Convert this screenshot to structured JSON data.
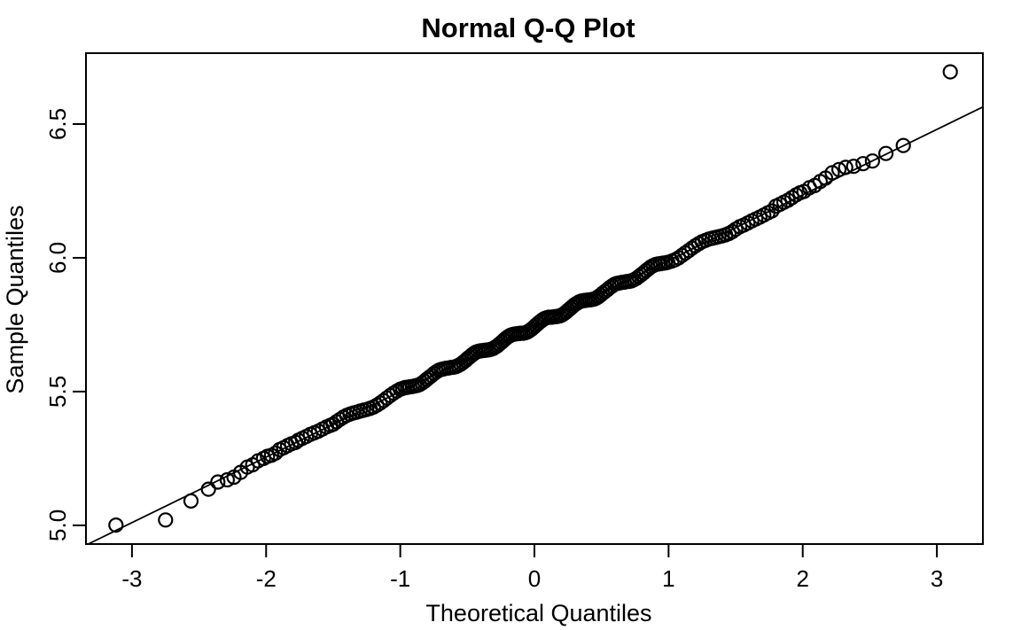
{
  "figure": {
    "background_color": "#ffffff",
    "foreground_color": "#000000"
  },
  "chart_data": {
    "type": "scatter",
    "title": "Normal Q-Q Plot",
    "xlabel": "Theoretical Quantiles",
    "ylabel": "Sample Quantiles",
    "x_ticks": [
      -3,
      -2,
      -1,
      0,
      1,
      2,
      3
    ],
    "x_tick_labels": [
      "-3",
      "-2",
      "-1",
      "0",
      "1",
      "2",
      "3"
    ],
    "y_ticks": [
      5.0,
      5.5,
      6.0,
      6.5
    ],
    "y_tick_labels": [
      "5.0",
      "5.5",
      "6.0",
      "6.5"
    ],
    "xlim": [
      -3.343,
      3.343
    ],
    "ylim": [
      4.93,
      6.765
    ],
    "grid": false,
    "legend": "none",
    "marker": "open-circle",
    "colors": {
      "points": "#000000",
      "line": "#000000",
      "text": "#000000",
      "background": "#ffffff"
    },
    "reference_line": {
      "kind": "qqline",
      "intercept": 5.745,
      "slope": 0.245
    },
    "points": [
      [
        -3.12,
        5.001
      ],
      [
        -2.75,
        5.02
      ],
      [
        -2.56,
        5.091
      ],
      [
        -2.43,
        5.135
      ],
      [
        -2.36,
        5.162
      ],
      [
        -2.29,
        5.17
      ],
      [
        -2.24,
        5.18
      ],
      [
        -2.19,
        5.198
      ],
      [
        -2.14,
        5.218
      ],
      [
        -2.1,
        5.226
      ],
      [
        -2.06,
        5.241
      ],
      [
        -2.02,
        5.25
      ],
      [
        -1.99,
        5.258
      ],
      [
        -1.96,
        5.262
      ],
      [
        -1.93,
        5.27
      ],
      [
        -1.9,
        5.283
      ],
      [
        -1.87,
        5.29
      ],
      [
        -1.84,
        5.298
      ],
      [
        -1.81,
        5.305
      ],
      [
        -1.78,
        5.31
      ],
      [
        -1.76,
        5.318
      ],
      [
        -1.73,
        5.325
      ],
      [
        -1.7,
        5.332
      ],
      [
        -1.67,
        5.34
      ],
      [
        -1.64,
        5.346
      ],
      [
        -1.61,
        5.352
      ],
      [
        -1.58,
        5.36
      ],
      [
        -1.55,
        5.368
      ],
      [
        -1.52,
        5.374
      ],
      [
        -1.5,
        5.378
      ],
      [
        -1.475,
        5.387
      ],
      [
        -1.45,
        5.396
      ],
      [
        -1.425,
        5.404
      ],
      [
        -1.4,
        5.411
      ],
      [
        -1.375,
        5.416
      ],
      [
        -1.35,
        5.42
      ],
      [
        -1.325,
        5.423
      ],
      [
        -1.3,
        5.427
      ],
      [
        -1.275,
        5.43
      ],
      [
        -1.25,
        5.433
      ],
      [
        -1.225,
        5.437
      ],
      [
        -1.2,
        5.442
      ],
      [
        -1.175,
        5.449
      ],
      [
        -1.15,
        5.457
      ],
      [
        -1.125,
        5.466
      ],
      [
        -1.1,
        5.476
      ],
      [
        -1.075,
        5.485
      ],
      [
        -1.05,
        5.494
      ],
      [
        -1.025,
        5.502
      ],
      [
        -1.0,
        5.509
      ],
      [
        -0.982,
        5.512
      ],
      [
        -0.964,
        5.515
      ],
      [
        -0.946,
        5.516
      ],
      [
        -0.928,
        5.518
      ],
      [
        -0.91,
        5.519
      ],
      [
        -0.892,
        5.521
      ],
      [
        -0.874,
        5.523
      ],
      [
        -0.856,
        5.526
      ],
      [
        -0.838,
        5.532
      ],
      [
        -0.82,
        5.538
      ],
      [
        -0.802,
        5.546
      ],
      [
        -0.784,
        5.553
      ],
      [
        -0.766,
        5.56
      ],
      [
        -0.748,
        5.568
      ],
      [
        -0.73,
        5.574
      ],
      [
        -0.712,
        5.58
      ],
      [
        -0.694,
        5.583
      ],
      [
        -0.676,
        5.585
      ],
      [
        -0.658,
        5.587
      ],
      [
        -0.64,
        5.588
      ],
      [
        -0.622,
        5.59
      ],
      [
        -0.604,
        5.591
      ],
      [
        -0.586,
        5.593
      ],
      [
        -0.568,
        5.597
      ],
      [
        -0.55,
        5.602
      ],
      [
        -0.532,
        5.609
      ],
      [
        -0.514,
        5.616
      ],
      [
        -0.5,
        5.623
      ],
      [
        -0.484,
        5.629
      ],
      [
        -0.468,
        5.636
      ],
      [
        -0.452,
        5.642
      ],
      [
        -0.436,
        5.647
      ],
      [
        -0.42,
        5.65
      ],
      [
        -0.404,
        5.652
      ],
      [
        -0.388,
        5.653
      ],
      [
        -0.372,
        5.654
      ],
      [
        -0.356,
        5.655
      ],
      [
        -0.34,
        5.656
      ],
      [
        -0.324,
        5.658
      ],
      [
        -0.308,
        5.661
      ],
      [
        -0.292,
        5.666
      ],
      [
        -0.276,
        5.671
      ],
      [
        -0.26,
        5.678
      ],
      [
        -0.244,
        5.685
      ],
      [
        -0.228,
        5.692
      ],
      [
        -0.212,
        5.699
      ],
      [
        -0.196,
        5.705
      ],
      [
        -0.18,
        5.71
      ],
      [
        -0.164,
        5.713
      ],
      [
        -0.148,
        5.715
      ],
      [
        -0.132,
        5.716
      ],
      [
        -0.116,
        5.717
      ],
      [
        -0.1,
        5.718
      ],
      [
        -0.084,
        5.718
      ],
      [
        -0.068,
        5.72
      ],
      [
        -0.052,
        5.723
      ],
      [
        -0.036,
        5.728
      ],
      [
        -0.02,
        5.734
      ],
      [
        -0.004,
        5.741
      ],
      [
        0.012,
        5.748
      ],
      [
        0.028,
        5.755
      ],
      [
        0.044,
        5.762
      ],
      [
        0.06,
        5.768
      ],
      [
        0.076,
        5.773
      ],
      [
        0.092,
        5.776
      ],
      [
        0.108,
        5.778
      ],
      [
        0.124,
        5.778
      ],
      [
        0.14,
        5.779
      ],
      [
        0.156,
        5.78
      ],
      [
        0.172,
        5.781
      ],
      [
        0.188,
        5.783
      ],
      [
        0.204,
        5.786
      ],
      [
        0.22,
        5.791
      ],
      [
        0.236,
        5.797
      ],
      [
        0.252,
        5.804
      ],
      [
        0.268,
        5.811
      ],
      [
        0.284,
        5.818
      ],
      [
        0.3,
        5.825
      ],
      [
        0.316,
        5.83
      ],
      [
        0.332,
        5.835
      ],
      [
        0.348,
        5.838
      ],
      [
        0.364,
        5.84
      ],
      [
        0.38,
        5.841
      ],
      [
        0.396,
        5.842
      ],
      [
        0.412,
        5.843
      ],
      [
        0.428,
        5.844
      ],
      [
        0.444,
        5.846
      ],
      [
        0.46,
        5.849
      ],
      [
        0.476,
        5.854
      ],
      [
        0.492,
        5.86
      ],
      [
        0.508,
        5.867
      ],
      [
        0.526,
        5.874
      ],
      [
        0.544,
        5.881
      ],
      [
        0.562,
        5.889
      ],
      [
        0.58,
        5.895
      ],
      [
        0.598,
        5.901
      ],
      [
        0.616,
        5.904
      ],
      [
        0.634,
        5.906
      ],
      [
        0.652,
        5.908
      ],
      [
        0.67,
        5.909
      ],
      [
        0.688,
        5.911
      ],
      [
        0.706,
        5.912
      ],
      [
        0.724,
        5.914
      ],
      [
        0.742,
        5.918
      ],
      [
        0.76,
        5.923
      ],
      [
        0.778,
        5.93
      ],
      [
        0.796,
        5.937
      ],
      [
        0.814,
        5.944
      ],
      [
        0.832,
        5.952
      ],
      [
        0.85,
        5.959
      ],
      [
        0.868,
        5.966
      ],
      [
        0.886,
        5.971
      ],
      [
        0.904,
        5.975
      ],
      [
        0.922,
        5.977
      ],
      [
        0.94,
        5.978
      ],
      [
        0.958,
        5.98
      ],
      [
        0.976,
        5.981
      ],
      [
        0.994,
        5.983
      ],
      [
        1.025,
        5.988
      ],
      [
        1.05,
        5.993
      ],
      [
        1.075,
        6.0
      ],
      [
        1.1,
        6.009
      ],
      [
        1.125,
        6.018
      ],
      [
        1.15,
        6.027
      ],
      [
        1.175,
        6.036
      ],
      [
        1.2,
        6.045
      ],
      [
        1.225,
        6.053
      ],
      [
        1.25,
        6.06
      ],
      [
        1.275,
        6.065
      ],
      [
        1.3,
        6.07
      ],
      [
        1.325,
        6.073
      ],
      [
        1.35,
        6.076
      ],
      [
        1.375,
        6.079
      ],
      [
        1.4,
        6.082
      ],
      [
        1.425,
        6.086
      ],
      [
        1.45,
        6.091
      ],
      [
        1.475,
        6.098
      ],
      [
        1.5,
        6.107
      ],
      [
        1.53,
        6.116
      ],
      [
        1.56,
        6.122
      ],
      [
        1.59,
        6.13
      ],
      [
        1.62,
        6.138
      ],
      [
        1.65,
        6.145
      ],
      [
        1.68,
        6.152
      ],
      [
        1.71,
        6.16
      ],
      [
        1.74,
        6.168
      ],
      [
        1.77,
        6.175
      ],
      [
        1.8,
        6.193
      ],
      [
        1.83,
        6.2
      ],
      [
        1.86,
        6.208
      ],
      [
        1.89,
        6.215
      ],
      [
        1.92,
        6.225
      ],
      [
        1.95,
        6.235
      ],
      [
        1.98,
        6.243
      ],
      [
        2.01,
        6.248
      ],
      [
        2.05,
        6.262
      ],
      [
        2.09,
        6.27
      ],
      [
        2.13,
        6.285
      ],
      [
        2.17,
        6.298
      ],
      [
        2.22,
        6.318
      ],
      [
        2.27,
        6.33
      ],
      [
        2.32,
        6.338
      ],
      [
        2.38,
        6.342
      ],
      [
        2.45,
        6.352
      ],
      [
        2.52,
        6.362
      ],
      [
        2.62,
        6.39
      ],
      [
        2.75,
        6.42
      ],
      [
        3.1,
        6.695
      ]
    ]
  }
}
